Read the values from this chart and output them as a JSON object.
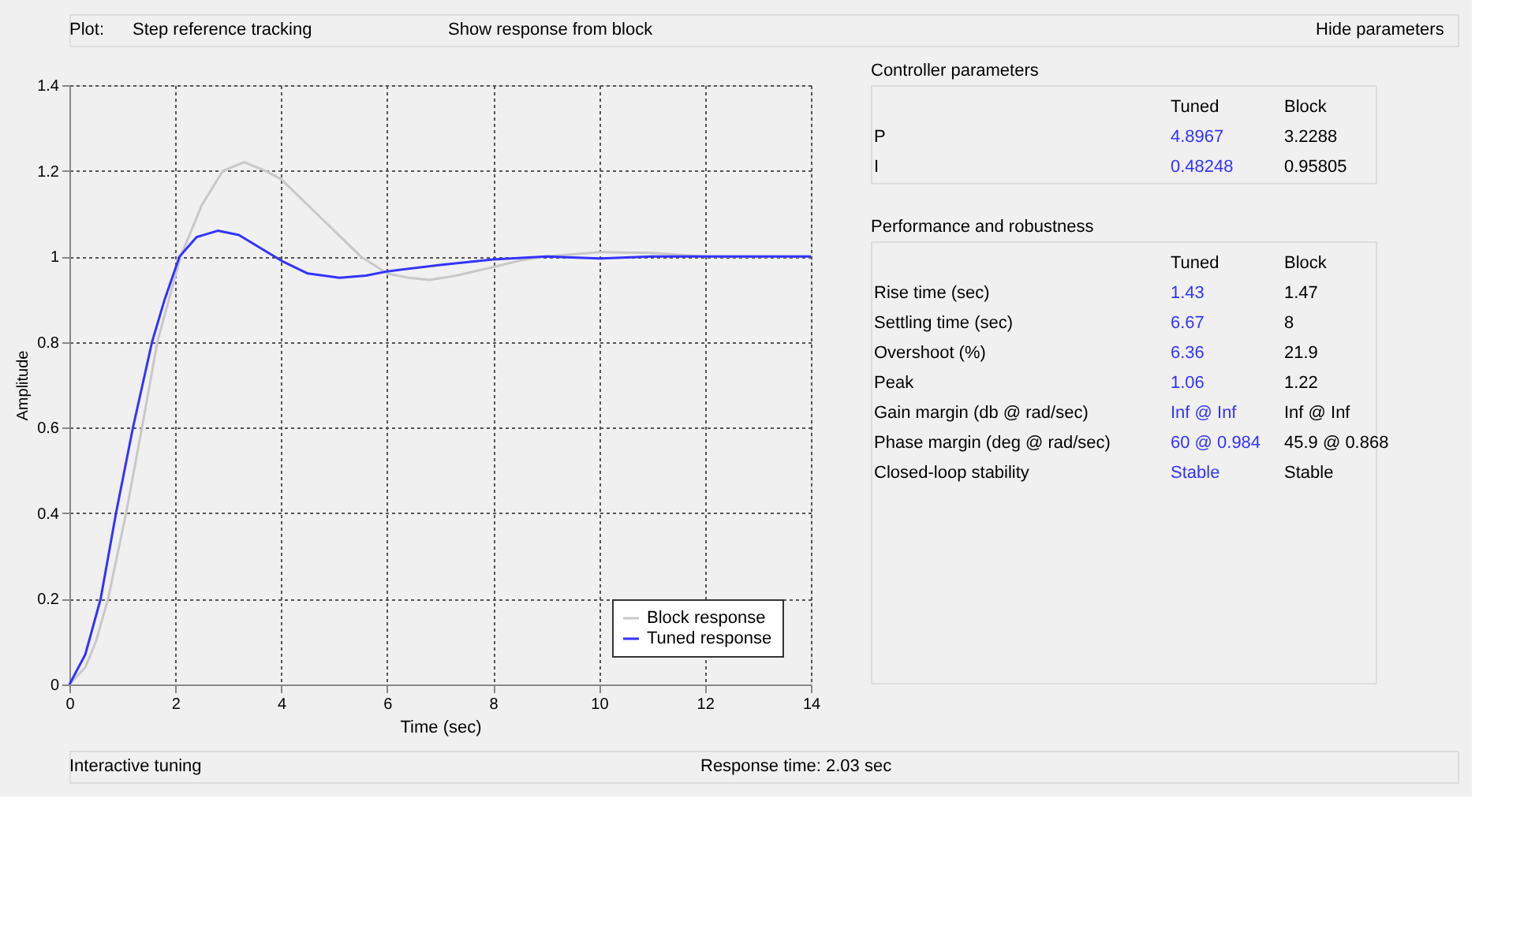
{
  "chart_data": [
    {
      "type": "line",
      "xlabel": "Time (sec)",
      "ylabel": "Amplitude",
      "xlim": [
        0,
        14
      ],
      "ylim": [
        0,
        1.4
      ],
      "xticks": [
        0,
        2,
        4,
        6,
        8,
        10,
        12,
        14
      ],
      "yticks": [
        0,
        0.2,
        0.4,
        0.6,
        0.8,
        1,
        1.2,
        1.4
      ],
      "grid": true,
      "legend": "bottom right",
      "line_style": "solid",
      "annotations": [
        "Plot:",
        "Step reference tracking",
        "Show response from block",
        "Hide parameters",
        "Interactive tuning",
        "Response time: 2.03 sec"
      ],
      "series": [
        {
          "name": "Block response",
          "color": "#c8c8c8",
          "x": [
            0,
            0.3,
            0.5,
            0.73,
            1.07,
            1.37,
            1.66,
            2.1,
            2.5,
            2.9,
            3.3,
            3.7,
            4,
            4.5,
            5,
            5.5,
            6,
            6.4,
            6.8,
            7.3,
            8,
            8.5,
            9,
            10,
            11,
            12,
            13,
            14
          ],
          "values": [
            0,
            0.04,
            0.1,
            0.2,
            0.4,
            0.6,
            0.8,
            1.0,
            1.12,
            1.2,
            1.22,
            1.2,
            1.18,
            1.12,
            1.06,
            1.0,
            0.96,
            0.95,
            0.945,
            0.955,
            0.975,
            0.99,
            1.0,
            1.01,
            1.008,
            1.0,
            1.0,
            1.0
          ]
        },
        {
          "name": "Tuned response",
          "color": "#3333ff",
          "x": [
            0,
            0.3,
            0.59,
            0.88,
            1.2,
            1.56,
            1.8,
            2.08,
            2.4,
            2.8,
            3.2,
            3.6,
            4,
            4.5,
            5.1,
            5.6,
            6,
            7,
            8,
            9,
            10,
            11,
            12,
            13,
            14
          ],
          "values": [
            0,
            0.07,
            0.2,
            0.4,
            0.6,
            0.8,
            0.9,
            1.0,
            1.045,
            1.06,
            1.05,
            1.02,
            0.99,
            0.96,
            0.95,
            0.955,
            0.965,
            0.98,
            0.993,
            1.0,
            0.995,
            1.0,
            1.0,
            1.0,
            1.0
          ]
        }
      ]
    },
    {
      "type": "other",
      "title": "Controller parameters",
      "annotations": [
        "Tuned",
        "Block",
        "P",
        "4.8967",
        "3.2288",
        "I",
        "0.48248",
        "0.95805"
      ]
    },
    {
      "type": "other",
      "title": "Performance and robustness",
      "annotations": [
        "Tuned",
        "Block",
        "Rise time (sec)",
        "1.43",
        "1.47",
        "Settling time (sec)",
        "6.67",
        "8",
        "Overshoot (%)",
        "6.36",
        "21.9",
        "Peak",
        "1.06",
        "1.22",
        "Gain margin (db @ rad/sec)",
        "Inf @ Inf",
        "Inf @ Inf",
        "Phase margin (deg @ rad/sec)",
        "60 @ 0.984",
        "45.9 @ 0.868",
        "Closed-loop stability",
        "Stable",
        "Stable"
      ]
    }
  ]
}
